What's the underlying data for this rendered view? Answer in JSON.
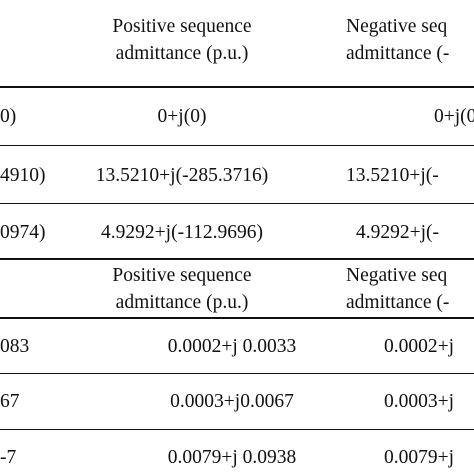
{
  "table": {
    "section1": {
      "headers": [
        {
          "line1": "Positive sequence",
          "line2": "admittance (p.u.)"
        },
        {
          "line1": "Negative seq",
          "line2": "admittance (-"
        }
      ],
      "rows": [
        {
          "c0": "0)",
          "c1": "0+j(0)",
          "c2": "0+j(0"
        },
        {
          "c0": "4910)",
          "c1": "13.5210+j(-285.3716)",
          "c2": "13.5210+j(-"
        },
        {
          "c0": "0974)",
          "c1": "4.9292+j(-112.9696)",
          "c2": "4.9292+j(-"
        }
      ]
    },
    "section2": {
      "headers": [
        {
          "line1": "Positive sequence",
          "line2": "admittance (p.u.)"
        },
        {
          "line1": "Negative seq",
          "line2": "admittance (-"
        }
      ],
      "rows": [
        {
          "c0": "083",
          "c1": "0.0002+j 0.0033",
          "c2": "0.0002+j"
        },
        {
          "c0": "67",
          "c1": "0.0003+j0.0067",
          "c2": "0.0003+j"
        },
        {
          "c0": "-7",
          "c1": "0.0079+j 0.0938",
          "c2": "0.0079+j"
        }
      ]
    }
  }
}
